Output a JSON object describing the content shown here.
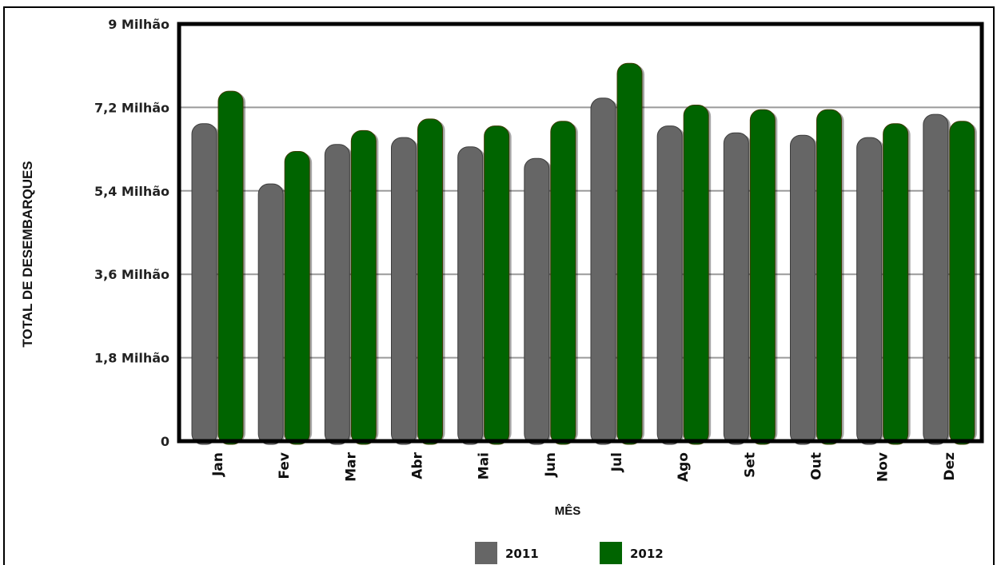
{
  "chart_data": {
    "type": "bar",
    "title": "",
    "xlabel": "MÊS",
    "ylabel": "TOTAL DE DESEMBARQUES",
    "ylim": [
      0,
      9000000
    ],
    "yticks": [
      0,
      1800000,
      3600000,
      5400000,
      7200000,
      9000000
    ],
    "ytick_labels": [
      "0",
      "1,8 Milhão",
      "3,6 Milhão",
      "5,4 Milhão",
      "7,2 Milhão",
      "9 Milhão"
    ],
    "categories": [
      "Jan",
      "Fev",
      "Mar",
      "Abr",
      "Mai",
      "Jun",
      "Jul",
      "Ago",
      "Set",
      "Out",
      "Nov",
      "Dez"
    ],
    "series": [
      {
        "name": "2011",
        "color": "#666666",
        "values": [
          6850000,
          5550000,
          6400000,
          6550000,
          6350000,
          6100000,
          7400000,
          6800000,
          6650000,
          6600000,
          6550000,
          7050000
        ]
      },
      {
        "name": "2012",
        "color": "#006400",
        "values": [
          7550000,
          6250000,
          6700000,
          6950000,
          6800000,
          6900000,
          8150000,
          7250000,
          7150000,
          7150000,
          6850000,
          6900000
        ]
      }
    ],
    "grid": true,
    "legend_position": "bottom"
  }
}
